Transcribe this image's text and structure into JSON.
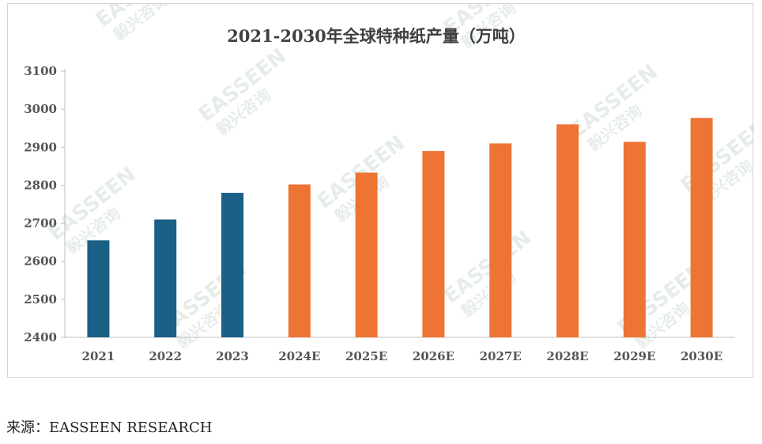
{
  "chart_data": {
    "type": "bar",
    "title": "2021-2030年全球特种纸产量（万吨）",
    "categories": [
      "2021",
      "2022",
      "2023",
      "2024E",
      "2025E",
      "2026E",
      "2027E",
      "2028E",
      "2029E",
      "2030E"
    ],
    "values": [
      2655,
      2710,
      2780,
      2802,
      2833,
      2890,
      2910,
      2960,
      2914,
      2977
    ],
    "actual_color": "#1a5f85",
    "forecast_color": "#ee7434",
    "actual_count": 3,
    "ylim": [
      2400,
      3100
    ],
    "yticks": [
      2400,
      2500,
      2600,
      2700,
      2800,
      2900,
      3000,
      3100
    ],
    "grid": false,
    "legend": "none"
  },
  "source": "来源：EASSEEN RESEARCH",
  "watermark": {
    "brand": "EASSEEN",
    "brand_cn": "毅兴咨询",
    "color": "#c8d9cf"
  }
}
